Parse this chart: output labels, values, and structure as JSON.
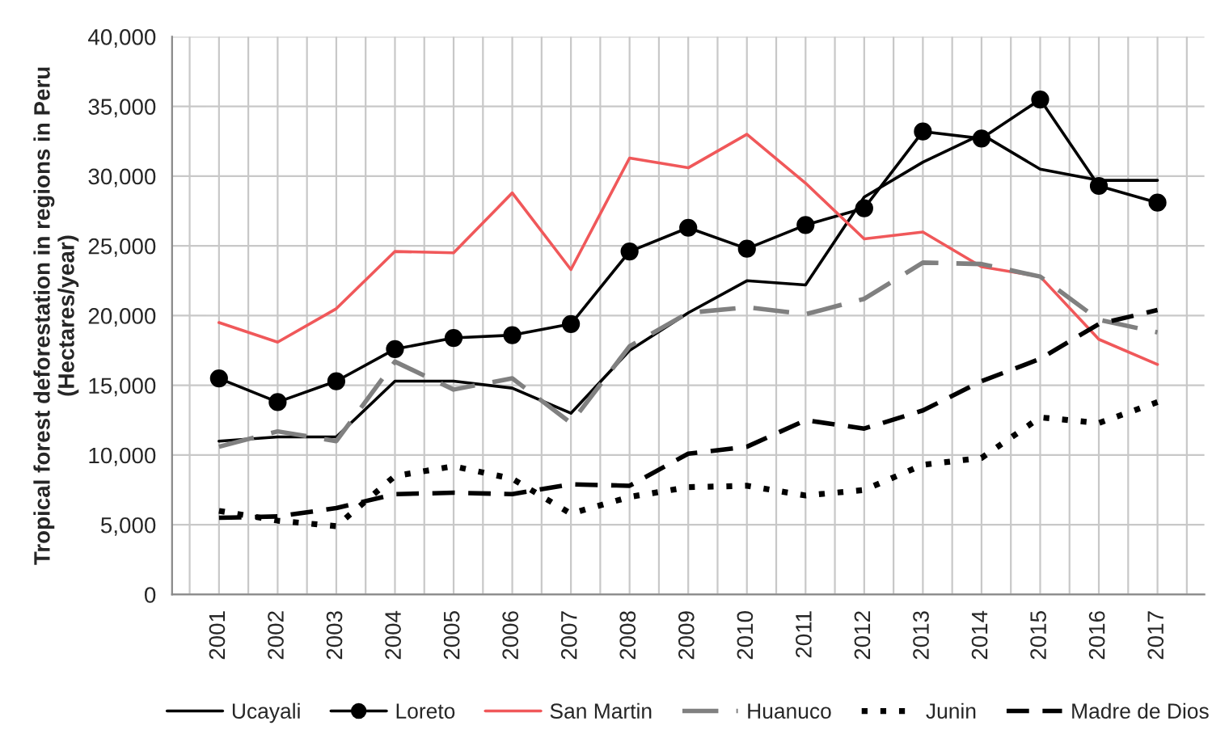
{
  "chart_data": {
    "type": "line",
    "ylabel": "Tropical forest deforestation in regions in Peru\n(Hectares/year)",
    "categories": [
      "2001",
      "2002",
      "2003",
      "2004",
      "2005",
      "2006",
      "2007",
      "2008",
      "2009",
      "2010",
      "2011",
      "2012",
      "2013",
      "2014",
      "2015",
      "2016",
      "2017"
    ],
    "ylim": [
      0,
      40000
    ],
    "yticks": [
      0,
      {
        "value": 5000,
        "label": "5,000"
      },
      {
        "value": 10000,
        "label": "10,000"
      },
      {
        "value": 15000,
        "label": "15,000"
      },
      {
        "value": 20000,
        "label": "20,000"
      },
      {
        "value": 25000,
        "label": "25,000"
      },
      {
        "value": 30000,
        "label": "30,000"
      },
      {
        "value": 35000,
        "label": "35,000"
      },
      {
        "value": 40000,
        "label": "40,000"
      }
    ],
    "grid": true,
    "legend": "bottom",
    "series": [
      {
        "name": "Ucayali",
        "color": "#000000",
        "line_style": "solid",
        "marker": "none",
        "values": [
          11000,
          11300,
          11300,
          15300,
          15300,
          14800,
          13000,
          17500,
          20200,
          22500,
          22200,
          28500,
          31000,
          33000,
          30500,
          29700,
          29700
        ]
      },
      {
        "name": "Loreto",
        "color": "#000000",
        "line_style": "solid",
        "marker": "circle",
        "values": [
          15500,
          13800,
          15300,
          17600,
          18400,
          18600,
          19400,
          24600,
          26300,
          24800,
          26500,
          27700,
          33200,
          32700,
          35500,
          29300,
          28100
        ]
      },
      {
        "name": "San Martin",
        "color": "#f0585a",
        "line_style": "solid",
        "marker": "none",
        "values": [
          19500,
          18100,
          20500,
          24600,
          24500,
          28800,
          23300,
          31300,
          30600,
          33000,
          29500,
          25500,
          26000,
          23500,
          22800,
          18300,
          16500
        ]
      },
      {
        "name": "Huanuco",
        "color": "#808080",
        "line_style": "dashed",
        "marker": "none",
        "values": [
          10600,
          11700,
          11000,
          16700,
          14700,
          15500,
          12300,
          17800,
          20200,
          20600,
          20100,
          21200,
          23800,
          23700,
          22800,
          19700,
          18800
        ]
      },
      {
        "name": "Junin",
        "color": "#000000",
        "line_style": "dotted",
        "marker": "none",
        "values": [
          6000,
          5300,
          4900,
          8500,
          9200,
          8300,
          5800,
          7000,
          7700,
          7800,
          7100,
          7500,
          9300,
          9800,
          12700,
          12300,
          13800
        ]
      },
      {
        "name": "Madre de Dios",
        "color": "#000000",
        "line_style": "dashed",
        "marker": "none",
        "values": [
          5500,
          5600,
          6200,
          7200,
          7300,
          7200,
          7900,
          7800,
          10100,
          10600,
          12500,
          11900,
          13200,
          15300,
          16900,
          19400,
          20400
        ]
      }
    ]
  }
}
